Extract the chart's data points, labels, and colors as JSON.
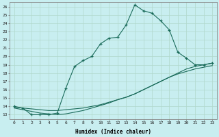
{
  "xlabel": "Humidex (Indice chaleur)",
  "bg_color": "#c8eef0",
  "line_color": "#1a6b5a",
  "grid_color": "#b0d8cc",
  "xlim": [
    -0.5,
    23.5
  ],
  "ylim": [
    12.5,
    26.5
  ],
  "xticks": [
    0,
    1,
    2,
    3,
    4,
    5,
    6,
    7,
    8,
    9,
    10,
    11,
    12,
    13,
    14,
    15,
    16,
    17,
    18,
    19,
    20,
    21,
    22,
    23
  ],
  "yticks": [
    13,
    14,
    15,
    16,
    17,
    18,
    19,
    20,
    21,
    22,
    23,
    24,
    25,
    26
  ],
  "curve1_x": [
    0,
    1,
    2,
    3,
    4,
    5,
    6,
    7,
    8,
    9,
    10,
    11,
    12,
    13,
    14,
    15,
    16,
    17,
    18,
    19,
    20,
    21,
    22,
    23
  ],
  "curve1_y": [
    14.0,
    13.8,
    13.0,
    13.0,
    13.0,
    13.2,
    16.2,
    18.8,
    19.5,
    20.0,
    21.5,
    22.2,
    22.3,
    23.8,
    26.2,
    25.5,
    25.2,
    24.3,
    23.2,
    20.5,
    19.8,
    19.0,
    19.0,
    19.2
  ],
  "curve2_x": [
    0,
    1,
    2,
    3,
    4,
    5,
    6,
    7,
    8,
    9,
    10,
    11,
    12,
    13,
    14,
    15,
    16,
    17,
    18,
    19,
    20,
    21,
    22,
    23
  ],
  "curve2_y": [
    13.9,
    13.8,
    13.7,
    13.6,
    13.5,
    13.5,
    13.6,
    13.7,
    13.8,
    14.0,
    14.2,
    14.5,
    14.8,
    15.1,
    15.5,
    16.0,
    16.5,
    17.0,
    17.5,
    18.0,
    18.5,
    18.8,
    19.0,
    19.2
  ],
  "curve3_x": [
    0,
    1,
    2,
    3,
    4,
    5,
    6,
    7,
    8,
    9,
    10,
    11,
    12,
    13,
    14,
    15,
    16,
    17,
    18,
    19,
    20,
    21,
    22,
    23
  ],
  "curve3_y": [
    13.8,
    13.6,
    13.4,
    13.2,
    13.1,
    13.0,
    13.1,
    13.3,
    13.5,
    13.8,
    14.1,
    14.4,
    14.8,
    15.1,
    15.5,
    16.0,
    16.5,
    17.0,
    17.5,
    17.9,
    18.2,
    18.5,
    18.7,
    18.9
  ]
}
